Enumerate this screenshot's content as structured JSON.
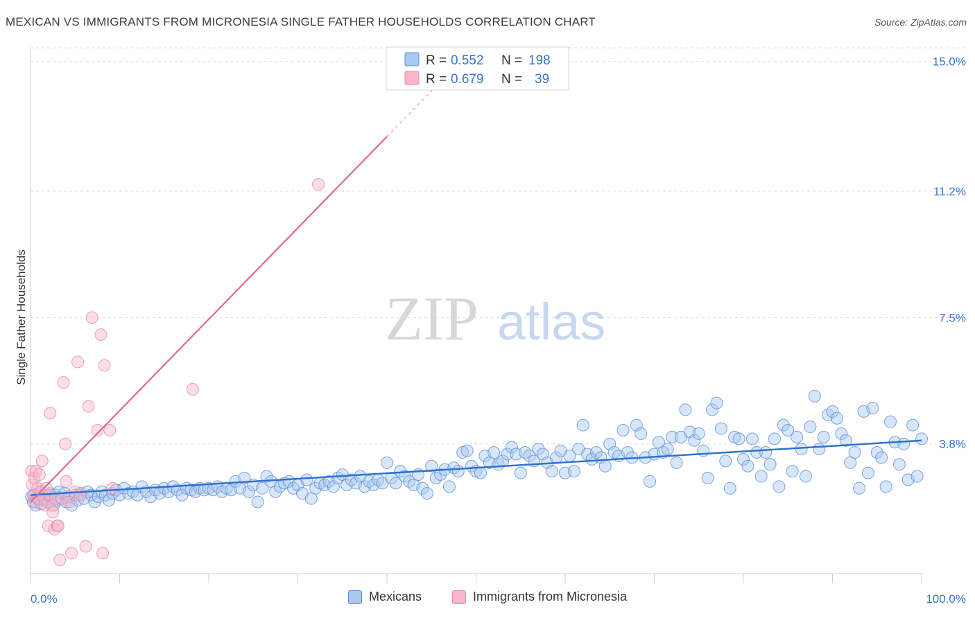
{
  "title": "MEXICAN VS IMMIGRANTS FROM MICRONESIA SINGLE FATHER HOUSEHOLDS CORRELATION CHART",
  "source": "Source: ZipAtlas.com",
  "watermark": {
    "zip": "ZIP",
    "atlas": "atlas"
  },
  "colors": {
    "blue_fill": "#a9c8f2",
    "blue_stroke": "#5b8fd6",
    "blue_line": "#2f72cf",
    "pink_fill": "#f7b6c9",
    "pink_stroke": "#e58aa6",
    "pink_line": "#e0678f",
    "axis_label": "#3a74c9",
    "grid": "#dddddd"
  },
  "stats_legend": [
    {
      "r_label": "R =",
      "r_value": "0.552",
      "n_label": "N =",
      "n_value": "198"
    },
    {
      "r_label": "R =",
      "r_value": "0.679",
      "n_label": "N =",
      "n_value": "39"
    }
  ],
  "chart_data": {
    "type": "scatter",
    "title": "MEXICAN VS IMMIGRANTS FROM MICRONESIA SINGLE FATHER HOUSEHOLDS CORRELATION CHART",
    "xlabel": "",
    "ylabel": "Single Father Households",
    "xlim": [
      0,
      100
    ],
    "ylim": [
      0,
      15.4
    ],
    "x_tick_labels": [
      "0.0%",
      "100.0%"
    ],
    "y_ticks": [
      3.8,
      7.5,
      11.2,
      15.0
    ],
    "y_tick_labels": [
      "3.8%",
      "7.5%",
      "11.2%",
      "15.0%"
    ],
    "grid": "horizontal dashed",
    "legend": "bottom-center",
    "series": [
      {
        "name": "Mexicans",
        "color": "#a9c8f2",
        "trend": {
          "x": [
            0,
            100
          ],
          "y": [
            2.3,
            3.9
          ]
        },
        "points": [
          [
            0.1,
            2.25
          ],
          [
            0.3,
            2.1
          ],
          [
            0.5,
            2.3
          ],
          [
            0.6,
            2.0
          ],
          [
            0.8,
            2.2
          ],
          [
            1.0,
            2.4
          ],
          [
            1.2,
            2.05
          ],
          [
            1.4,
            2.3
          ],
          [
            1.6,
            2.15
          ],
          [
            1.8,
            2.25
          ],
          [
            2.0,
            2.1
          ],
          [
            2.2,
            2.35
          ],
          [
            2.4,
            2.2
          ],
          [
            2.6,
            2.0
          ],
          [
            2.8,
            2.3
          ],
          [
            3.0,
            2.15
          ],
          [
            3.2,
            2.4
          ],
          [
            3.5,
            2.2
          ],
          [
            3.8,
            2.35
          ],
          [
            4.0,
            2.1
          ],
          [
            4.3,
            2.25
          ],
          [
            4.6,
            2.0
          ],
          [
            5.0,
            2.3
          ],
          [
            5.3,
            2.15
          ],
          [
            5.6,
            2.35
          ],
          [
            6.0,
            2.2
          ],
          [
            6.4,
            2.4
          ],
          [
            6.8,
            2.3
          ],
          [
            7.2,
            2.1
          ],
          [
            7.6,
            2.25
          ],
          [
            8.0,
            2.4
          ],
          [
            8.4,
            2.3
          ],
          [
            8.8,
            2.15
          ],
          [
            9.2,
            2.35
          ],
          [
            9.6,
            2.45
          ],
          [
            10.0,
            2.3
          ],
          [
            10.5,
            2.5
          ],
          [
            11.0,
            2.35
          ],
          [
            11.5,
            2.4
          ],
          [
            12.0,
            2.3
          ],
          [
            12.5,
            2.55
          ],
          [
            13.0,
            2.4
          ],
          [
            13.5,
            2.25
          ],
          [
            14.0,
            2.45
          ],
          [
            14.5,
            2.35
          ],
          [
            15.0,
            2.5
          ],
          [
            15.5,
            2.4
          ],
          [
            16.0,
            2.55
          ],
          [
            16.5,
            2.45
          ],
          [
            17.0,
            2.3
          ],
          [
            17.5,
            2.5
          ],
          [
            18.0,
            2.45
          ],
          [
            18.5,
            2.4
          ],
          [
            19.0,
            2.5
          ],
          [
            19.5,
            2.45
          ],
          [
            20.0,
            2.5
          ],
          [
            20.5,
            2.45
          ],
          [
            21.0,
            2.55
          ],
          [
            21.5,
            2.4
          ],
          [
            22.0,
            2.5
          ],
          [
            22.5,
            2.45
          ],
          [
            23.0,
            2.7
          ],
          [
            23.5,
            2.5
          ],
          [
            24.0,
            2.8
          ],
          [
            24.5,
            2.4
          ],
          [
            25.0,
            2.6
          ],
          [
            25.5,
            2.1
          ],
          [
            26.0,
            2.5
          ],
          [
            26.5,
            2.85
          ],
          [
            27.0,
            2.7
          ],
          [
            27.5,
            2.4
          ],
          [
            28.0,
            2.55
          ],
          [
            28.5,
            2.65
          ],
          [
            29.0,
            2.7
          ],
          [
            29.5,
            2.5
          ],
          [
            30.0,
            2.6
          ],
          [
            30.5,
            2.35
          ],
          [
            31.0,
            2.75
          ],
          [
            31.5,
            2.2
          ],
          [
            32.0,
            2.5
          ],
          [
            32.5,
            2.65
          ],
          [
            33.0,
            2.6
          ],
          [
            33.5,
            2.7
          ],
          [
            34.0,
            2.55
          ],
          [
            34.5,
            2.8
          ],
          [
            35.0,
            2.9
          ],
          [
            35.5,
            2.6
          ],
          [
            36.0,
            2.75
          ],
          [
            36.5,
            2.65
          ],
          [
            37.0,
            2.85
          ],
          [
            37.5,
            2.55
          ],
          [
            38.0,
            2.7
          ],
          [
            38.5,
            2.6
          ],
          [
            39.0,
            2.75
          ],
          [
            39.5,
            2.65
          ],
          [
            40.0,
            3.25
          ],
          [
            40.5,
            2.8
          ],
          [
            41.0,
            2.65
          ],
          [
            41.5,
            3.0
          ],
          [
            42.0,
            2.85
          ],
          [
            42.5,
            2.7
          ],
          [
            43.0,
            2.6
          ],
          [
            43.5,
            2.9
          ],
          [
            44.0,
            2.5
          ],
          [
            44.5,
            2.35
          ],
          [
            45.0,
            3.15
          ],
          [
            45.5,
            2.8
          ],
          [
            46.0,
            2.9
          ],
          [
            46.5,
            3.05
          ],
          [
            47.0,
            2.55
          ],
          [
            47.5,
            3.1
          ],
          [
            48.0,
            3.0
          ],
          [
            48.5,
            3.55
          ],
          [
            49.0,
            3.6
          ],
          [
            49.5,
            3.15
          ],
          [
            50.0,
            3.0
          ],
          [
            50.5,
            2.95
          ],
          [
            51.0,
            3.45
          ],
          [
            51.5,
            3.25
          ],
          [
            52.0,
            3.55
          ],
          [
            52.5,
            3.2
          ],
          [
            53.0,
            3.3
          ],
          [
            53.5,
            3.5
          ],
          [
            54.0,
            3.7
          ],
          [
            54.5,
            3.5
          ],
          [
            55.0,
            2.95
          ],
          [
            55.5,
            3.55
          ],
          [
            56.0,
            3.45
          ],
          [
            56.5,
            3.3
          ],
          [
            57.0,
            3.65
          ],
          [
            57.5,
            3.5
          ],
          [
            58.0,
            3.25
          ],
          [
            58.5,
            3.0
          ],
          [
            59.0,
            3.4
          ],
          [
            59.5,
            3.6
          ],
          [
            60.0,
            2.95
          ],
          [
            60.5,
            3.45
          ],
          [
            61.0,
            3.0
          ],
          [
            61.5,
            3.65
          ],
          [
            62.0,
            4.35
          ],
          [
            62.5,
            3.5
          ],
          [
            63.0,
            3.35
          ],
          [
            63.5,
            3.55
          ],
          [
            64.0,
            3.4
          ],
          [
            64.5,
            3.15
          ],
          [
            65.0,
            3.8
          ],
          [
            65.5,
            3.55
          ],
          [
            66.0,
            3.45
          ],
          [
            66.5,
            4.2
          ],
          [
            67.0,
            3.55
          ],
          [
            67.5,
            3.4
          ],
          [
            68.0,
            4.35
          ],
          [
            68.5,
            4.1
          ],
          [
            69.0,
            3.4
          ],
          [
            69.5,
            2.7
          ],
          [
            70.0,
            3.5
          ],
          [
            70.5,
            3.85
          ],
          [
            71.0,
            3.55
          ],
          [
            71.5,
            3.65
          ],
          [
            72.0,
            4.0
          ],
          [
            72.5,
            3.25
          ],
          [
            73.0,
            4.0
          ],
          [
            73.5,
            4.8
          ],
          [
            74.0,
            4.15
          ],
          [
            74.5,
            3.9
          ],
          [
            75.0,
            4.1
          ],
          [
            75.5,
            3.6
          ],
          [
            76.0,
            2.8
          ],
          [
            76.5,
            4.8
          ],
          [
            77.0,
            5.0
          ],
          [
            77.5,
            4.25
          ],
          [
            78.0,
            3.3
          ],
          [
            78.5,
            2.5
          ],
          [
            79.0,
            4.0
          ],
          [
            79.5,
            3.95
          ],
          [
            80.0,
            3.35
          ],
          [
            80.5,
            3.15
          ],
          [
            81.0,
            3.95
          ],
          [
            81.5,
            3.55
          ],
          [
            82.0,
            2.85
          ],
          [
            82.5,
            3.55
          ],
          [
            83.0,
            3.2
          ],
          [
            83.5,
            3.95
          ],
          [
            84.0,
            2.55
          ],
          [
            84.5,
            4.35
          ],
          [
            85.0,
            4.2
          ],
          [
            85.5,
            3.0
          ],
          [
            86.0,
            4.0
          ],
          [
            86.5,
            3.65
          ],
          [
            87.0,
            2.85
          ],
          [
            87.5,
            4.3
          ],
          [
            88.0,
            5.2
          ],
          [
            88.5,
            3.65
          ],
          [
            89.0,
            4.0
          ],
          [
            89.5,
            4.65
          ],
          [
            90.0,
            4.75
          ],
          [
            90.5,
            4.55
          ],
          [
            91.0,
            4.1
          ],
          [
            91.5,
            3.9
          ],
          [
            92.0,
            3.25
          ],
          [
            92.5,
            3.55
          ],
          [
            93.0,
            2.5
          ],
          [
            93.5,
            4.75
          ],
          [
            94.0,
            2.95
          ],
          [
            94.5,
            4.85
          ],
          [
            95.0,
            3.55
          ],
          [
            95.5,
            3.4
          ],
          [
            96.0,
            2.55
          ],
          [
            96.5,
            4.45
          ],
          [
            97.0,
            3.85
          ],
          [
            97.5,
            3.2
          ],
          [
            98.0,
            3.8
          ],
          [
            98.5,
            2.75
          ],
          [
            99.0,
            4.35
          ],
          [
            99.5,
            2.85
          ],
          [
            100.0,
            3.95
          ]
        ]
      },
      {
        "name": "Immigrants from Micronesia",
        "color": "#f7b6c9",
        "trend": {
          "x": [
            0,
            40
          ],
          "y": [
            2.1,
            12.8
          ]
        },
        "points": [
          [
            0.1,
            3.0
          ],
          [
            0.2,
            2.6
          ],
          [
            0.3,
            2.3
          ],
          [
            0.4,
            2.8
          ],
          [
            0.5,
            2.1
          ],
          [
            0.6,
            3.0
          ],
          [
            0.8,
            2.5
          ],
          [
            0.9,
            2.2
          ],
          [
            1.0,
            2.9
          ],
          [
            1.2,
            2.4
          ],
          [
            1.3,
            3.3
          ],
          [
            1.5,
            2.2
          ],
          [
            1.6,
            2.0
          ],
          [
            1.8,
            2.5
          ],
          [
            2.0,
            1.4
          ],
          [
            2.1,
            2.3
          ],
          [
            2.2,
            4.7
          ],
          [
            2.4,
            2.0
          ],
          [
            2.5,
            1.8
          ],
          [
            2.7,
            1.3
          ],
          [
            2.8,
            2.2
          ],
          [
            3.0,
            1.4
          ],
          [
            3.1,
            1.4
          ],
          [
            3.3,
            0.4
          ],
          [
            3.5,
            2.2
          ],
          [
            3.7,
            5.6
          ],
          [
            3.9,
            3.8
          ],
          [
            4.0,
            2.7
          ],
          [
            4.3,
            2.1
          ],
          [
            4.6,
            0.6
          ],
          [
            5.0,
            2.4
          ],
          [
            5.3,
            6.2
          ],
          [
            5.6,
            2.3
          ],
          [
            6.2,
            0.8
          ],
          [
            6.5,
            4.9
          ],
          [
            6.9,
            7.5
          ],
          [
            7.5,
            4.2
          ],
          [
            7.9,
            7.0
          ],
          [
            8.1,
            0.6
          ],
          [
            8.3,
            6.1
          ],
          [
            8.9,
            4.2
          ],
          [
            9.2,
            2.5
          ],
          [
            18.2,
            5.4
          ],
          [
            32.3,
            11.4
          ]
        ]
      }
    ]
  }
}
